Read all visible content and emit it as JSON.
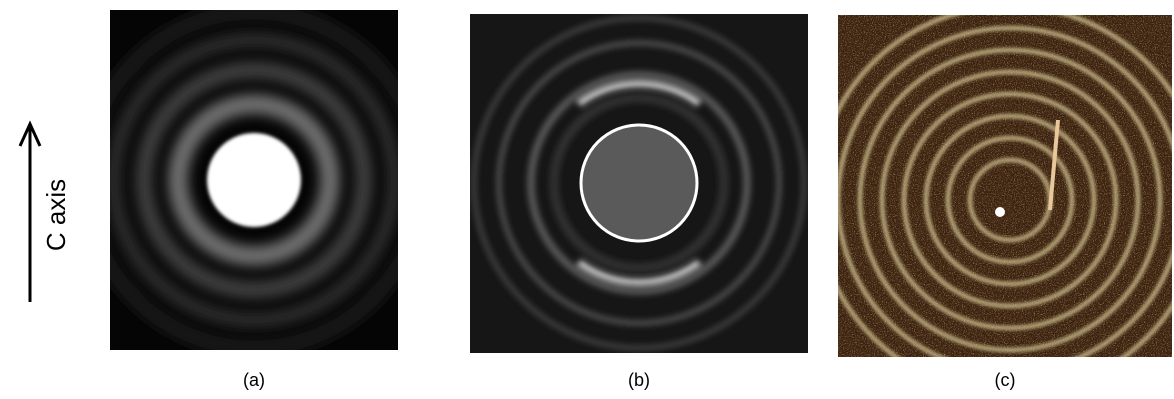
{
  "axis_label": "C axis",
  "panels": [
    {
      "label": "(a)"
    },
    {
      "label": "(b)"
    },
    {
      "label": "(c)"
    }
  ]
}
